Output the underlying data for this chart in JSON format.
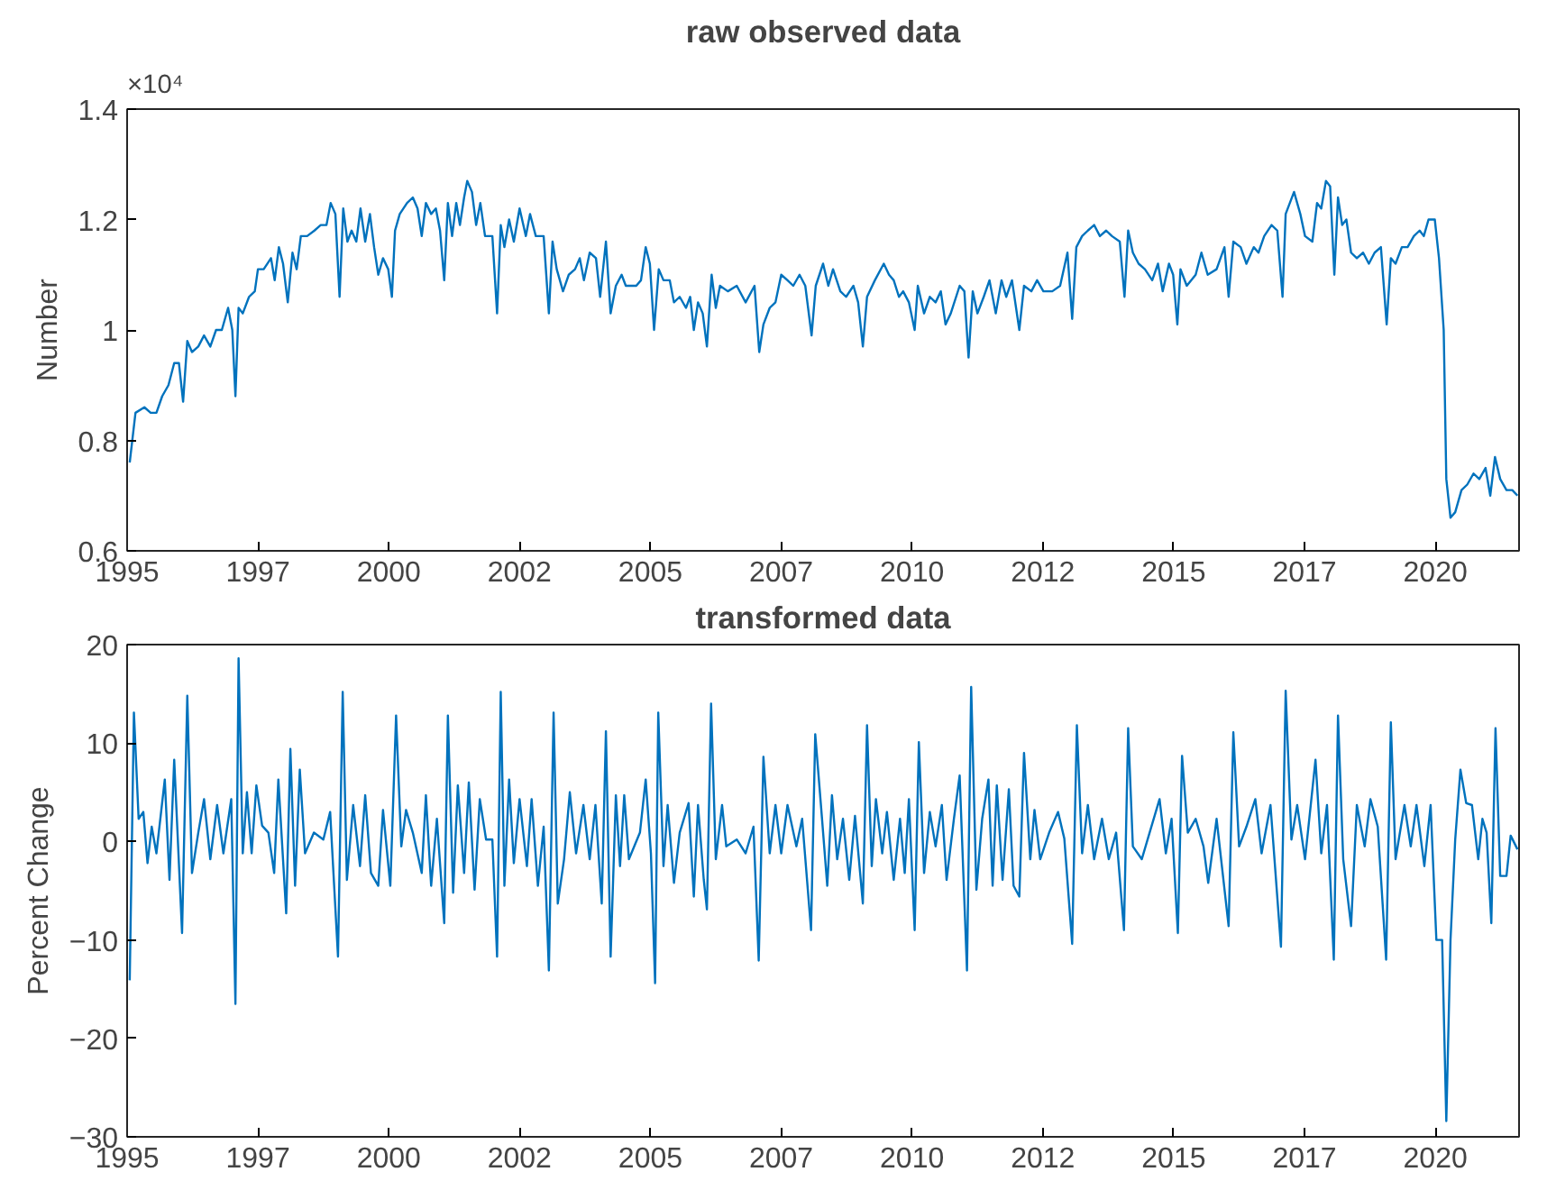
{
  "chart_data": [
    {
      "type": "line",
      "title": "raw observed data",
      "ylabel": "Number",
      "annotations": [
        "×10⁴"
      ],
      "xlim": [
        1995,
        2021.6
      ],
      "xticks": [
        {
          "value": 1995,
          "label": "1995"
        },
        {
          "value": 1997.5,
          "label": "1997"
        },
        {
          "value": 2000,
          "label": "2000"
        },
        {
          "value": 2002.5,
          "label": "2002"
        },
        {
          "value": 2005,
          "label": "2005"
        },
        {
          "value": 2007.5,
          "label": "2007"
        },
        {
          "value": 2010,
          "label": "2010"
        },
        {
          "value": 2012.5,
          "label": "2012"
        },
        {
          "value": 2015,
          "label": "2015"
        },
        {
          "value": 2017.5,
          "label": "2017"
        },
        {
          "value": 2020,
          "label": "2020"
        }
      ],
      "ylim": [
        0.6,
        1.4
      ],
      "yticks": [
        0.6,
        0.8,
        1,
        1.2,
        1.4
      ],
      "series": [
        {
          "color": "#0072bd",
          "x": [
            1995.05,
            1995.16,
            1995.33,
            1995.45,
            1995.56,
            1995.67,
            1995.79,
            1995.9,
            1995.99,
            1996.07,
            1996.15,
            1996.24,
            1996.36,
            1996.47,
            1996.59,
            1996.7,
            1996.81,
            1996.93,
            1997.01,
            1997.07,
            1997.13,
            1997.21,
            1997.33,
            1997.44,
            1997.5,
            1997.61,
            1997.75,
            1997.82,
            1997.9,
            1997.98,
            1998.07,
            1998.16,
            1998.24,
            1998.32,
            1998.44,
            1998.58,
            1998.7,
            1998.81,
            1998.89,
            1998.98,
            1999.06,
            1999.13,
            1999.21,
            1999.29,
            1999.38,
            1999.46,
            1999.55,
            1999.64,
            1999.72,
            1999.8,
            1999.89,
            1999.99,
            2000.06,
            2000.12,
            2000.21,
            2000.35,
            2000.46,
            2000.55,
            2000.63,
            2000.71,
            2000.81,
            2000.9,
            2000.98,
            2001.06,
            2001.13,
            2001.21,
            2001.29,
            2001.36,
            2001.44,
            2001.5,
            2001.59,
            2001.67,
            2001.75,
            2001.84,
            2001.98,
            2002.07,
            2002.14,
            2002.21,
            2002.3,
            2002.39,
            2002.5,
            2002.62,
            2002.7,
            2002.81,
            2002.96,
            2003.06,
            2003.13,
            2003.21,
            2003.33,
            2003.44,
            2003.56,
            2003.65,
            2003.73,
            2003.84,
            2003.96,
            2004.04,
            2004.15,
            2004.24,
            2004.34,
            2004.45,
            2004.53,
            2004.61,
            2004.73,
            2004.82,
            2004.91,
            2004.99,
            2005.07,
            2005.16,
            2005.25,
            2005.37,
            2005.45,
            2005.56,
            2005.68,
            2005.76,
            2005.83,
            2005.91,
            2006.0,
            2006.08,
            2006.17,
            2006.25,
            2006.33,
            2006.48,
            2006.65,
            2006.82,
            2006.99,
            2007.08,
            2007.16,
            2007.28,
            2007.39,
            2007.5,
            2007.62,
            2007.73,
            2007.85,
            2007.96,
            2008.08,
            2008.16,
            2008.3,
            2008.4,
            2008.49,
            2008.63,
            2008.74,
            2008.88,
            2008.97,
            2009.06,
            2009.14,
            2009.29,
            2009.46,
            2009.56,
            2009.65,
            2009.75,
            2009.83,
            2009.94,
            2010.05,
            2010.11,
            2010.23,
            2010.34,
            2010.45,
            2010.55,
            2010.64,
            2010.74,
            2010.91,
            2011.0,
            2011.08,
            2011.16,
            2011.25,
            2011.37,
            2011.48,
            2011.6,
            2011.71,
            2011.8,
            2011.91,
            2012.05,
            2012.14,
            2012.28,
            2012.39,
            2012.51,
            2012.68,
            2012.83,
            2012.97,
            2013.06,
            2013.14,
            2013.25,
            2013.36,
            2013.48,
            2013.59,
            2013.71,
            2013.82,
            2013.97,
            2014.06,
            2014.13,
            2014.22,
            2014.33,
            2014.45,
            2014.59,
            2014.7,
            2014.79,
            2014.91,
            2014.99,
            2015.07,
            2015.13,
            2015.25,
            2015.42,
            2015.53,
            2015.65,
            2015.82,
            2015.97,
            2016.05,
            2016.14,
            2016.28,
            2016.39,
            2016.53,
            2016.62,
            2016.73,
            2016.87,
            2016.98,
            2017.08,
            2017.14,
            2017.3,
            2017.42,
            2017.51,
            2017.65,
            2017.74,
            2017.82,
            2017.91,
            2017.99,
            2018.07,
            2018.14,
            2018.22,
            2018.3,
            2018.39,
            2018.5,
            2018.62,
            2018.73,
            2018.84,
            2018.96,
            2019.07,
            2019.15,
            2019.24,
            2019.36,
            2019.47,
            2019.59,
            2019.7,
            2019.78,
            2019.87,
            2019.99,
            2020.07,
            2020.16,
            2020.21,
            2020.29,
            2020.38,
            2020.5,
            2020.61,
            2020.73,
            2020.84,
            2020.96,
            2021.05,
            2021.14,
            2021.24,
            2021.36,
            2021.47,
            2021.57
          ],
          "values": [
            0.76,
            0.85,
            0.86,
            0.85,
            0.85,
            0.88,
            0.9,
            0.94,
            0.94,
            0.87,
            0.98,
            0.96,
            0.97,
            0.99,
            0.97,
            1.0,
            1.0,
            1.04,
            1.0,
            0.88,
            1.04,
            1.03,
            1.06,
            1.07,
            1.11,
            1.11,
            1.13,
            1.09,
            1.15,
            1.12,
            1.05,
            1.14,
            1.11,
            1.17,
            1.17,
            1.18,
            1.19,
            1.19,
            1.23,
            1.21,
            1.06,
            1.22,
            1.16,
            1.18,
            1.16,
            1.22,
            1.16,
            1.21,
            1.15,
            1.1,
            1.13,
            1.11,
            1.06,
            1.18,
            1.21,
            1.23,
            1.24,
            1.22,
            1.17,
            1.23,
            1.21,
            1.22,
            1.18,
            1.09,
            1.23,
            1.17,
            1.23,
            1.19,
            1.24,
            1.27,
            1.25,
            1.19,
            1.23,
            1.17,
            1.17,
            1.03,
            1.19,
            1.15,
            1.2,
            1.16,
            1.22,
            1.17,
            1.21,
            1.17,
            1.17,
            1.03,
            1.16,
            1.11,
            1.07,
            1.1,
            1.11,
            1.13,
            1.09,
            1.14,
            1.13,
            1.06,
            1.16,
            1.03,
            1.08,
            1.1,
            1.08,
            1.08,
            1.08,
            1.09,
            1.15,
            1.12,
            1.0,
            1.11,
            1.09,
            1.09,
            1.05,
            1.06,
            1.04,
            1.06,
            1.0,
            1.05,
            1.03,
            0.97,
            1.1,
            1.04,
            1.08,
            1.07,
            1.08,
            1.05,
            1.08,
            0.96,
            1.01,
            1.04,
            1.05,
            1.1,
            1.09,
            1.08,
            1.1,
            1.08,
            0.99,
            1.08,
            1.12,
            1.08,
            1.11,
            1.07,
            1.06,
            1.08,
            1.05,
            0.97,
            1.06,
            1.09,
            1.12,
            1.1,
            1.09,
            1.06,
            1.07,
            1.05,
            1.0,
            1.08,
            1.03,
            1.06,
            1.05,
            1.07,
            1.01,
            1.03,
            1.08,
            1.07,
            0.95,
            1.07,
            1.03,
            1.06,
            1.09,
            1.03,
            1.09,
            1.06,
            1.09,
            1.0,
            1.08,
            1.07,
            1.09,
            1.07,
            1.07,
            1.08,
            1.14,
            1.02,
            1.15,
            1.17,
            1.18,
            1.19,
            1.17,
            1.18,
            1.17,
            1.16,
            1.06,
            1.18,
            1.14,
            1.12,
            1.11,
            1.09,
            1.12,
            1.07,
            1.12,
            1.1,
            1.01,
            1.11,
            1.08,
            1.1,
            1.14,
            1.1,
            1.11,
            1.15,
            1.06,
            1.16,
            1.15,
            1.12,
            1.15,
            1.14,
            1.17,
            1.19,
            1.18,
            1.06,
            1.21,
            1.25,
            1.21,
            1.17,
            1.16,
            1.23,
            1.22,
            1.27,
            1.26,
            1.1,
            1.24,
            1.19,
            1.2,
            1.14,
            1.13,
            1.14,
            1.12,
            1.14,
            1.15,
            1.01,
            1.13,
            1.12,
            1.15,
            1.15,
            1.17,
            1.18,
            1.17,
            1.2,
            1.2,
            1.13,
            1.0,
            0.73,
            0.66,
            0.67,
            0.71,
            0.72,
            0.74,
            0.73,
            0.75,
            0.7,
            0.77,
            0.73,
            0.71,
            0.71,
            0.7
          ]
        }
      ]
    },
    {
      "type": "line",
      "title": "transformed data",
      "ylabel": "Percent Change",
      "xlim": [
        1995,
        2021.6
      ],
      "xticks": [
        {
          "value": 1995,
          "label": "1995"
        },
        {
          "value": 1997.5,
          "label": "1997"
        },
        {
          "value": 2000,
          "label": "2000"
        },
        {
          "value": 2002.5,
          "label": "2002"
        },
        {
          "value": 2005,
          "label": "2005"
        },
        {
          "value": 2007.5,
          "label": "2007"
        },
        {
          "value": 2010,
          "label": "2010"
        },
        {
          "value": 2012.5,
          "label": "2012"
        },
        {
          "value": 2015,
          "label": "2015"
        },
        {
          "value": 2017.5,
          "label": "2017"
        },
        {
          "value": 2020,
          "label": "2020"
        }
      ],
      "ylim": [
        -30,
        20
      ],
      "yticks": [
        -30,
        -20,
        -10,
        0,
        10,
        20
      ],
      "series": [
        {
          "color": "#0072bd",
          "x": [
            1995.05,
            1995.13,
            1995.22,
            1995.31,
            1995.39,
            1995.47,
            1995.56,
            1995.72,
            1995.81,
            1995.9,
            1996.05,
            1996.15,
            1996.24,
            1996.36,
            1996.47,
            1996.59,
            1996.72,
            1996.84,
            1996.99,
            1997.07,
            1997.13,
            1997.21,
            1997.29,
            1997.38,
            1997.47,
            1997.58,
            1997.7,
            1997.81,
            1997.89,
            1998.04,
            1998.12,
            1998.21,
            1998.3,
            1998.4,
            1998.57,
            1998.75,
            1998.88,
            1999.03,
            1999.12,
            1999.2,
            1999.32,
            1999.45,
            1999.55,
            1999.66,
            1999.8,
            1999.89,
            2000.03,
            2000.14,
            2000.24,
            2000.33,
            2000.46,
            2000.63,
            2000.71,
            2000.81,
            2000.92,
            2001.06,
            2001.13,
            2001.23,
            2001.32,
            2001.44,
            2001.53,
            2001.64,
            2001.74,
            2001.86,
            2001.98,
            2002.07,
            2002.14,
            2002.21,
            2002.3,
            2002.39,
            2002.5,
            2002.64,
            2002.73,
            2002.85,
            2002.96,
            2003.06,
            2003.15,
            2003.23,
            2003.35,
            2003.46,
            2003.58,
            2003.72,
            2003.84,
            2003.95,
            2004.07,
            2004.15,
            2004.24,
            2004.34,
            2004.42,
            2004.5,
            2004.59,
            2004.8,
            2004.91,
            2005.01,
            2005.09,
            2005.15,
            2005.25,
            2005.33,
            2005.45,
            2005.56,
            2005.73,
            2005.83,
            2005.91,
            2006.02,
            2006.08,
            2006.16,
            2006.25,
            2006.37,
            2006.45,
            2006.65,
            2006.82,
            2006.97,
            2007.07,
            2007.16,
            2007.28,
            2007.39,
            2007.5,
            2007.62,
            2007.79,
            2007.9,
            2008.07,
            2008.15,
            2008.28,
            2008.38,
            2008.47,
            2008.57,
            2008.68,
            2008.8,
            2008.91,
            2009.06,
            2009.14,
            2009.23,
            2009.31,
            2009.43,
            2009.52,
            2009.65,
            2009.77,
            2009.86,
            2009.94,
            2010.05,
            2010.13,
            2010.23,
            2010.34,
            2010.45,
            2010.57,
            2010.66,
            2010.8,
            2010.91,
            2011.05,
            2011.13,
            2011.23,
            2011.34,
            2011.46,
            2011.54,
            2011.62,
            2011.73,
            2011.85,
            2011.94,
            2012.05,
            2012.14,
            2012.26,
            2012.34,
            2012.45,
            2012.62,
            2012.79,
            2012.91,
            2013.06,
            2013.15,
            2013.25,
            2013.36,
            2013.48,
            2013.63,
            2013.76,
            2013.9,
            2014.05,
            2014.13,
            2014.22,
            2014.39,
            2014.54,
            2014.73,
            2014.85,
            2014.96,
            2015.08,
            2015.16,
            2015.27,
            2015.42,
            2015.57,
            2015.66,
            2015.82,
            2016.05,
            2016.14,
            2016.25,
            2016.39,
            2016.56,
            2016.68,
            2016.85,
            2017.05,
            2017.14,
            2017.25,
            2017.36,
            2017.51,
            2017.71,
            2017.82,
            2017.93,
            2018.06,
            2018.14,
            2018.24,
            2018.39,
            2018.5,
            2018.65,
            2018.76,
            2018.9,
            2019.06,
            2019.15,
            2019.24,
            2019.41,
            2019.53,
            2019.64,
            2019.79,
            2019.91,
            2020.02,
            2020.13,
            2020.21,
            2020.29,
            2020.38,
            2020.48,
            2020.59,
            2020.7,
            2020.82,
            2020.9,
            2020.98,
            2021.07,
            2021.15,
            2021.24,
            2021.36,
            2021.44,
            2021.57
          ],
          "values": [
            -14.1,
            13.1,
            2.3,
            3.0,
            -2.2,
            1.5,
            -1.2,
            6.3,
            -3.9,
            8.3,
            -9.3,
            14.8,
            -3.2,
            0.9,
            4.3,
            -1.8,
            3.7,
            -1.2,
            4.3,
            -16.5,
            18.6,
            -1.2,
            5.0,
            -1.2,
            5.7,
            1.6,
            0.9,
            -3.2,
            6.3,
            -7.3,
            9.4,
            -4.5,
            7.3,
            -1.2,
            0.9,
            0.2,
            3.0,
            -11.7,
            15.2,
            -3.9,
            3.7,
            -2.5,
            4.7,
            -3.2,
            -4.5,
            3.2,
            -4.5,
            12.8,
            -0.5,
            3.2,
            0.9,
            -3.2,
            4.7,
            -4.5,
            2.3,
            -8.3,
            12.8,
            -5.2,
            5.7,
            -3.2,
            6.0,
            -4.9,
            4.3,
            0.2,
            0.2,
            -11.7,
            15.2,
            -4.5,
            6.3,
            -2.2,
            4.3,
            -2.5,
            4.3,
            -4.5,
            1.5,
            -13.1,
            13.1,
            -6.3,
            -1.8,
            5.0,
            -1.2,
            3.7,
            -1.8,
            3.7,
            -6.3,
            11.2,
            -11.7,
            4.7,
            -2.5,
            4.7,
            -1.8,
            0.9,
            6.3,
            -1.2,
            -14.4,
            13.1,
            -2.5,
            3.7,
            -4.2,
            0.9,
            3.9,
            -5.6,
            3.7,
            -3.9,
            -6.9,
            14.0,
            -1.8,
            3.7,
            -0.5,
            0.2,
            -1.2,
            1.5,
            -12.1,
            8.6,
            -1.2,
            3.7,
            -1.2,
            3.7,
            -0.5,
            2.3,
            -9.0,
            10.9,
            2.3,
            -4.5,
            4.7,
            -1.8,
            2.3,
            -3.9,
            2.6,
            -6.3,
            11.8,
            -2.5,
            4.3,
            -1.2,
            3.0,
            -3.9,
            2.3,
            -3.2,
            4.3,
            -9.0,
            10.1,
            -3.2,
            3.0,
            -0.5,
            3.7,
            -3.9,
            2.3,
            6.7,
            -13.1,
            15.7,
            -4.9,
            2.3,
            6.3,
            -4.5,
            5.7,
            -3.9,
            5.3,
            -4.5,
            -5.6,
            9.0,
            -1.8,
            3.2,
            -1.8,
            0.9,
            3.0,
            0.3,
            -10.4,
            11.8,
            -1.2,
            3.7,
            -1.8,
            2.3,
            -1.8,
            0.9,
            -9.0,
            11.5,
            -0.5,
            -1.8,
            0.9,
            4.3,
            -1.2,
            2.3,
            -9.3,
            8.7,
            0.9,
            2.3,
            -0.5,
            -4.2,
            2.3,
            -8.6,
            11.1,
            -0.5,
            1.5,
            4.3,
            -1.2,
            3.7,
            -10.7,
            15.3,
            0.2,
            3.7,
            -1.8,
            8.3,
            -1.2,
            3.7,
            -12.0,
            12.8,
            -1.8,
            -8.6,
            3.7,
            -0.5,
            4.3,
            1.5,
            -12.0,
            12.1,
            -1.8,
            3.7,
            -0.5,
            3.7,
            -2.5,
            3.7,
            -10.0,
            -10.0,
            -28.4,
            -10.0,
            0.2,
            7.3,
            3.9,
            3.7,
            -1.8,
            2.3,
            0.9,
            -8.3,
            11.5,
            -3.5,
            -3.5,
            0.6,
            -0.8
          ]
        }
      ]
    }
  ]
}
